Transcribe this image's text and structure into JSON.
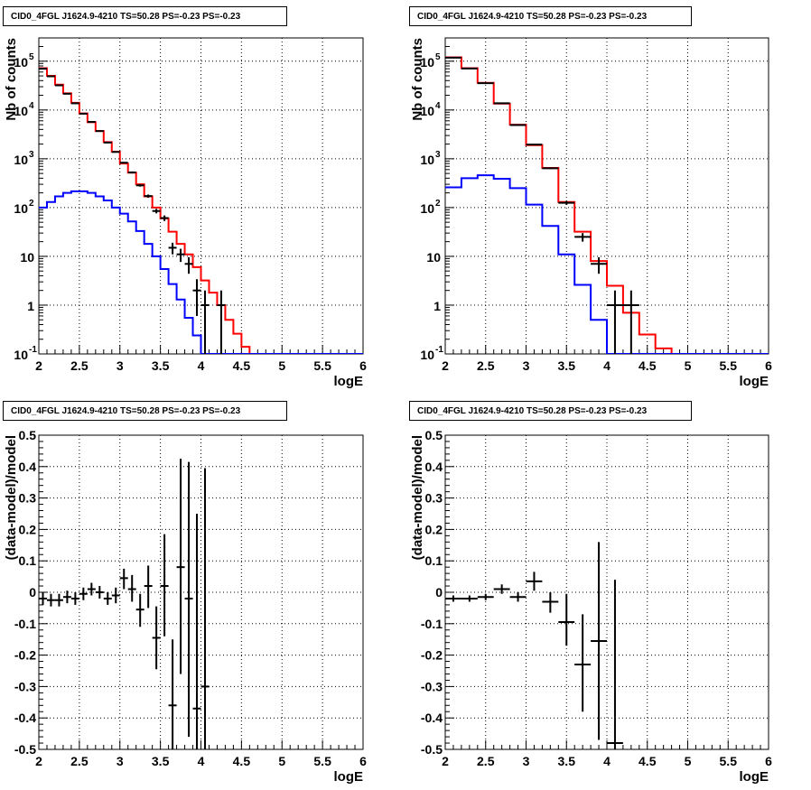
{
  "chart_data": [
    {
      "type": "line",
      "title": "CID0_4FGL J1624.9-4210 TS=50.28 PS=-0.23 PS=-0.23",
      "xlabel": "logE",
      "ylabel": "Nb of counts",
      "xlim": [
        2,
        6
      ],
      "ylim": [
        0.1,
        300000
      ],
      "yscale": "log",
      "xticks": [
        "2",
        "2.5",
        "3",
        "3.5",
        "4",
        "4.5",
        "5",
        "5.5",
        "6"
      ],
      "yticks": [
        {
          "value": 0.1,
          "base": "10",
          "exp": "-1"
        },
        {
          "value": 1,
          "base": "1",
          "exp": ""
        },
        {
          "value": 10,
          "base": "10",
          "exp": ""
        },
        {
          "value": 100,
          "base": "10",
          "exp": "2"
        },
        {
          "value": 1000,
          "base": "10",
          "exp": "3"
        },
        {
          "value": 10000,
          "base": "10",
          "exp": "4"
        },
        {
          "value": 100000,
          "base": "10",
          "exp": "5"
        }
      ],
      "grid": true,
      "bin_edges": [
        2.0,
        2.1,
        2.2,
        2.3,
        2.4,
        2.5,
        2.6,
        2.7,
        2.8,
        2.9,
        3.0,
        3.1,
        3.2,
        3.3,
        3.4,
        3.5,
        3.6,
        3.7,
        3.8,
        3.9,
        4.0,
        4.1,
        4.2,
        4.3,
        4.4,
        4.5,
        4.6,
        4.7,
        4.8,
        4.9,
        5.0,
        5.1,
        5.2,
        5.3,
        5.4,
        5.5,
        5.6,
        5.7,
        5.8,
        5.9,
        6.0
      ],
      "series": [
        {
          "color": "#ff0000",
          "style": "hist",
          "values": [
            72000,
            50000,
            33000,
            22000,
            14000,
            8500,
            5600,
            3700,
            2200,
            1400,
            800,
            520,
            300,
            170,
            100,
            60,
            32,
            18,
            11,
            6,
            3.2,
            1.8,
            1.0,
            0.5,
            0.26,
            0.14,
            0.1,
            0.1,
            0.1,
            0.1,
            0.1,
            0.1,
            0.1,
            0.1,
            0.1,
            0.1,
            0.1,
            0.1,
            0.1,
            0.1
          ]
        },
        {
          "color": "#0000ff",
          "style": "hist",
          "values": [
            100,
            130,
            170,
            200,
            215,
            215,
            200,
            170,
            140,
            100,
            75,
            52,
            33,
            18,
            10,
            5.5,
            2.7,
            1.3,
            0.55,
            0.24,
            0.1,
            0.1,
            0.1,
            0.1,
            0.1,
            0.1,
            0.1,
            0.1,
            0.1,
            0.1,
            0.1,
            0.1,
            0.1,
            0.1,
            0.1,
            0.1,
            0.1,
            0.1,
            0.1,
            0.1
          ]
        },
        {
          "color": "#000000",
          "style": "points",
          "points": [
            {
              "x": 2.05,
              "y": 70000,
              "lo": 69000,
              "hi": 71000
            },
            {
              "x": 2.15,
              "y": 49000,
              "lo": 48000,
              "hi": 50000
            },
            {
              "x": 2.25,
              "y": 32000,
              "lo": 31500,
              "hi": 32500
            },
            {
              "x": 2.35,
              "y": 21500,
              "lo": 21000,
              "hi": 22000
            },
            {
              "x": 2.45,
              "y": 13700,
              "lo": 13500,
              "hi": 13900
            },
            {
              "x": 2.55,
              "y": 8400,
              "lo": 8300,
              "hi": 8500
            },
            {
              "x": 2.65,
              "y": 5700,
              "lo": 5600,
              "hi": 5800
            },
            {
              "x": 2.75,
              "y": 3700,
              "lo": 3650,
              "hi": 3750
            },
            {
              "x": 2.85,
              "y": 2150,
              "lo": 2100,
              "hi": 2200
            },
            {
              "x": 2.95,
              "y": 1380,
              "lo": 1340,
              "hi": 1420
            },
            {
              "x": 3.05,
              "y": 830,
              "lo": 800,
              "hi": 860
            },
            {
              "x": 3.15,
              "y": 525,
              "lo": 500,
              "hi": 550
            },
            {
              "x": 3.25,
              "y": 285,
              "lo": 268,
              "hi": 302
            },
            {
              "x": 3.35,
              "y": 172,
              "lo": 159,
              "hi": 185
            },
            {
              "x": 3.45,
              "y": 85,
              "lo": 76,
              "hi": 94
            },
            {
              "x": 3.55,
              "y": 61,
              "lo": 53,
              "hi": 69
            },
            {
              "x": 3.65,
              "y": 15,
              "lo": 11,
              "hi": 19
            },
            {
              "x": 3.75,
              "y": 11,
              "lo": 7.7,
              "hi": 14.3
            },
            {
              "x": 3.85,
              "y": 7,
              "lo": 4.4,
              "hi": 9.6
            },
            {
              "x": 3.95,
              "y": 2,
              "lo": 0.6,
              "hi": 3.4
            },
            {
              "x": 4.05,
              "y": 1,
              "lo": 0.1,
              "hi": 2
            },
            {
              "x": 4.25,
              "y": 1,
              "lo": 0.1,
              "hi": 2
            }
          ]
        }
      ]
    },
    {
      "type": "line",
      "title": "CID0_4FGL J1624.9-4210 TS=50.28 PS=-0.23 PS=-0.23",
      "xlabel": "logE",
      "ylabel": "Nb of counts",
      "xlim": [
        2,
        6
      ],
      "ylim": [
        0.1,
        300000
      ],
      "yscale": "log",
      "xticks": [
        "2",
        "2.5",
        "3",
        "3.5",
        "4",
        "4.5",
        "5",
        "5.5",
        "6"
      ],
      "yticks": [
        {
          "value": 0.1,
          "base": "10",
          "exp": "-1"
        },
        {
          "value": 1,
          "base": "1",
          "exp": ""
        },
        {
          "value": 10,
          "base": "10",
          "exp": ""
        },
        {
          "value": 100,
          "base": "10",
          "exp": "2"
        },
        {
          "value": 1000,
          "base": "10",
          "exp": "3"
        },
        {
          "value": 10000,
          "base": "10",
          "exp": "4"
        },
        {
          "value": 100000,
          "base": "10",
          "exp": "5"
        }
      ],
      "grid": true,
      "bin_edges": [
        2.0,
        2.2,
        2.4,
        2.6,
        2.8,
        3.0,
        3.2,
        3.4,
        3.6,
        3.8,
        4.0,
        4.2,
        4.4,
        4.6,
        4.8,
        5.0,
        5.2,
        5.4,
        5.6,
        5.8,
        6.0
      ],
      "series": [
        {
          "color": "#ff0000",
          "style": "hist",
          "values": [
            120000,
            72000,
            36000,
            13500,
            5000,
            1900,
            650,
            130,
            32,
            8,
            2.5,
            0.7,
            0.25,
            0.13,
            0.1,
            0.1,
            0.1,
            0.1,
            0.1,
            0.1
          ]
        },
        {
          "color": "#0000ff",
          "style": "hist",
          "values": [
            260,
            400,
            460,
            390,
            250,
            115,
            42,
            11,
            2.6,
            0.5,
            0.1,
            0.1,
            0.1,
            0.1,
            0.1,
            0.1,
            0.1,
            0.1,
            0.1,
            0.1
          ]
        },
        {
          "color": "#000000",
          "style": "points",
          "points": [
            {
              "x": 2.1,
              "y": 118000,
              "lo": 117000,
              "hi": 119000
            },
            {
              "x": 2.3,
              "y": 71000,
              "lo": 70500,
              "hi": 71500
            },
            {
              "x": 2.5,
              "y": 35500,
              "lo": 35200,
              "hi": 35800
            },
            {
              "x": 2.7,
              "y": 13700,
              "lo": 13500,
              "hi": 13900
            },
            {
              "x": 2.9,
              "y": 4900,
              "lo": 4830,
              "hi": 4970
            },
            {
              "x": 3.1,
              "y": 1950,
              "lo": 1910,
              "hi": 1990
            },
            {
              "x": 3.3,
              "y": 640,
              "lo": 615,
              "hi": 665
            },
            {
              "x": 3.5,
              "y": 125,
              "lo": 114,
              "hi": 136
            },
            {
              "x": 3.7,
              "y": 25,
              "lo": 20,
              "hi": 30
            },
            {
              "x": 3.9,
              "y": 7,
              "lo": 4.4,
              "hi": 9.6
            },
            {
              "x": 4.1,
              "y": 1,
              "lo": 0.1,
              "hi": 2
            },
            {
              "x": 4.3,
              "y": 1,
              "lo": 0.1,
              "hi": 2
            }
          ]
        }
      ]
    },
    {
      "type": "scatter",
      "title": "CID0_4FGL J1624.9-4210 TS=50.28 PS=-0.23 PS=-0.23",
      "xlabel": "logE",
      "ylabel": "(data-model)/model",
      "xlim": [
        2,
        6
      ],
      "ylim": [
        -0.5,
        0.5
      ],
      "xticks": [
        "2",
        "2.5",
        "3",
        "3.5",
        "4",
        "4.5",
        "5",
        "5.5",
        "6"
      ],
      "yticks": [
        "-0.5",
        "-0.4",
        "-0.3",
        "-0.2",
        "-0.1",
        "0",
        "0.1",
        "0.2",
        "0.3",
        "0.4",
        "0.5"
      ],
      "grid": true,
      "points": [
        {
          "x": 2.05,
          "y": -0.02,
          "lo": -0.04,
          "hi": 0.0,
          "w": 0.05
        },
        {
          "x": 2.15,
          "y": -0.025,
          "lo": -0.045,
          "hi": -0.005,
          "w": 0.05
        },
        {
          "x": 2.25,
          "y": -0.025,
          "lo": -0.045,
          "hi": -0.005,
          "w": 0.05
        },
        {
          "x": 2.35,
          "y": -0.015,
          "lo": -0.035,
          "hi": 0.005,
          "w": 0.05
        },
        {
          "x": 2.45,
          "y": -0.02,
          "lo": -0.04,
          "hi": 0.0,
          "w": 0.05
        },
        {
          "x": 2.55,
          "y": -0.005,
          "lo": -0.025,
          "hi": 0.015,
          "w": 0.05
        },
        {
          "x": 2.65,
          "y": 0.01,
          "lo": -0.01,
          "hi": 0.03,
          "w": 0.05
        },
        {
          "x": 2.75,
          "y": 0.0,
          "lo": -0.02,
          "hi": 0.02,
          "w": 0.05
        },
        {
          "x": 2.85,
          "y": -0.02,
          "lo": -0.04,
          "hi": 0.0,
          "w": 0.05
        },
        {
          "x": 2.95,
          "y": -0.01,
          "lo": -0.035,
          "hi": 0.015,
          "w": 0.05
        },
        {
          "x": 3.05,
          "y": 0.045,
          "lo": 0.01,
          "hi": 0.075,
          "w": 0.05
        },
        {
          "x": 3.15,
          "y": 0.01,
          "lo": -0.03,
          "hi": 0.055,
          "w": 0.05
        },
        {
          "x": 3.25,
          "y": -0.055,
          "lo": -0.11,
          "hi": -0.005,
          "w": 0.05
        },
        {
          "x": 3.35,
          "y": 0.02,
          "lo": -0.05,
          "hi": 0.085,
          "w": 0.05
        },
        {
          "x": 3.45,
          "y": -0.145,
          "lo": -0.245,
          "hi": -0.045,
          "w": 0.05
        },
        {
          "x": 3.55,
          "y": 0.02,
          "lo": -0.14,
          "hi": 0.185,
          "w": 0.05
        },
        {
          "x": 3.65,
          "y": -0.36,
          "lo": -0.5,
          "hi": -0.15,
          "w": 0.05
        },
        {
          "x": 3.75,
          "y": 0.08,
          "lo": -0.26,
          "hi": 0.425,
          "w": 0.05
        },
        {
          "x": 3.85,
          "y": -0.02,
          "lo": -0.46,
          "hi": 0.415,
          "w": 0.05
        },
        {
          "x": 3.95,
          "y": -0.37,
          "lo": -0.5,
          "hi": 0.25,
          "w": 0.05
        },
        {
          "x": 4.05,
          "y": -0.3,
          "lo": -0.5,
          "hi": 0.395,
          "w": 0.05
        }
      ]
    },
    {
      "type": "scatter",
      "title": "CID0_4FGL J1624.9-4210 TS=50.28 PS=-0.23 PS=-0.23",
      "xlabel": "logE",
      "ylabel": "(data-model)/model",
      "xlim": [
        2,
        6
      ],
      "ylim": [
        -0.5,
        0.5
      ],
      "xticks": [
        "2",
        "2.5",
        "3",
        "3.5",
        "4",
        "4.5",
        "5",
        "5.5",
        "6"
      ],
      "yticks": [
        "-0.5",
        "-0.4",
        "-0.3",
        "-0.2",
        "-0.1",
        "0",
        "0.1",
        "0.2",
        "0.3",
        "0.4",
        "0.5"
      ],
      "grid": true,
      "points": [
        {
          "x": 2.1,
          "y": -0.02,
          "lo": -0.03,
          "hi": -0.01,
          "w": 0.1
        },
        {
          "x": 2.3,
          "y": -0.02,
          "lo": -0.03,
          "hi": -0.01,
          "w": 0.1
        },
        {
          "x": 2.5,
          "y": -0.015,
          "lo": -0.025,
          "hi": -0.005,
          "w": 0.1
        },
        {
          "x": 2.7,
          "y": 0.01,
          "lo": -0.005,
          "hi": 0.025,
          "w": 0.1
        },
        {
          "x": 2.9,
          "y": -0.015,
          "lo": -0.03,
          "hi": 0.0,
          "w": 0.1
        },
        {
          "x": 3.1,
          "y": 0.035,
          "lo": 0.005,
          "hi": 0.065,
          "w": 0.1
        },
        {
          "x": 3.3,
          "y": -0.03,
          "lo": -0.065,
          "hi": 0.0,
          "w": 0.1
        },
        {
          "x": 3.5,
          "y": -0.095,
          "lo": -0.17,
          "hi": -0.005,
          "w": 0.1
        },
        {
          "x": 3.7,
          "y": -0.23,
          "lo": -0.38,
          "hi": -0.07,
          "w": 0.1
        },
        {
          "x": 3.9,
          "y": -0.155,
          "lo": -0.47,
          "hi": 0.16,
          "w": 0.1
        },
        {
          "x": 4.1,
          "y": -0.48,
          "lo": -0.5,
          "hi": 0.04,
          "w": 0.1
        }
      ]
    }
  ]
}
